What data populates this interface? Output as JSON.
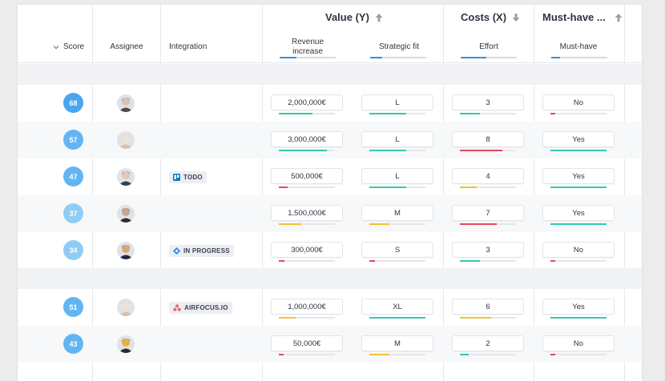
{
  "colors": {
    "primary": "#2f8fe3",
    "green": "#33c9b2",
    "yellow": "#f1c232",
    "red": "#e8455f",
    "badge_light": "#8fcdf5",
    "badge_dark": "#4aa5ef"
  },
  "header": {
    "groups": {
      "value": "Value (Y)",
      "costs": "Costs (X)",
      "musthave": "Must-have ..."
    },
    "columns": {
      "score": "Score",
      "assignee": "Assignee",
      "integration": "Integration",
      "revenue": "Revenue increase",
      "strategic": "Strategic fit",
      "effort": "Effort",
      "musthave": "Must-have"
    }
  },
  "rows": [
    {
      "score": "68",
      "tag": "",
      "tag_icon": "",
      "revenue": "2,000,000€",
      "rev_pct": 0.6,
      "rev_color": "green",
      "strategic": "L",
      "sf_pct": 0.65,
      "sf_color": "green",
      "effort": "3",
      "eff_pct": 0.35,
      "eff_color": "green",
      "musthave": "No",
      "mh_pct": 0.08,
      "mh_color": "red"
    },
    {
      "score": "57",
      "tag": "",
      "tag_icon": "",
      "revenue": "3,000,000€",
      "rev_pct": 0.85,
      "rev_color": "green",
      "strategic": "L",
      "sf_pct": 0.65,
      "sf_color": "green",
      "effort": "8",
      "eff_pct": 0.75,
      "eff_color": "red",
      "musthave": "Yes",
      "mh_pct": 1.0,
      "mh_color": "green"
    },
    {
      "score": "47",
      "tag": "TODO",
      "tag_icon": "trello-icon",
      "revenue": "500,000€",
      "rev_pct": 0.15,
      "rev_color": "red",
      "strategic": "L",
      "sf_pct": 0.65,
      "sf_color": "green",
      "effort": "4",
      "eff_pct": 0.3,
      "eff_color": "yellow",
      "musthave": "Yes",
      "mh_pct": 1.0,
      "mh_color": "green"
    },
    {
      "score": "37",
      "tag": "",
      "tag_icon": "",
      "revenue": "1,500,000€",
      "rev_pct": 0.4,
      "rev_color": "yellow",
      "strategic": "M",
      "sf_pct": 0.35,
      "sf_color": "yellow",
      "effort": "7",
      "eff_pct": 0.65,
      "eff_color": "red",
      "musthave": "Yes",
      "mh_pct": 1.0,
      "mh_color": "green"
    },
    {
      "score": "34",
      "tag": "IN PROGRESS",
      "tag_icon": "jira-icon",
      "revenue": "300,000€",
      "rev_pct": 0.1,
      "rev_color": "red",
      "strategic": "S",
      "sf_pct": 0.1,
      "sf_color": "red",
      "effort": "3",
      "eff_pct": 0.35,
      "eff_color": "green",
      "musthave": "No",
      "mh_pct": 0.08,
      "mh_color": "red"
    },
    {
      "score": "51",
      "tag": "AIRFOCUS.IO",
      "tag_icon": "asana-icon",
      "revenue": "1,000,000€",
      "rev_pct": 0.3,
      "rev_color": "yellow",
      "strategic": "XL",
      "sf_pct": 1.0,
      "sf_color": "green",
      "effort": "6",
      "eff_pct": 0.55,
      "eff_color": "yellow",
      "musthave": "Yes",
      "mh_pct": 1.0,
      "mh_color": "green"
    },
    {
      "score": "43",
      "tag": "",
      "tag_icon": "",
      "revenue": "50,000€",
      "rev_pct": 0.08,
      "rev_color": "red",
      "strategic": "M",
      "sf_pct": 0.35,
      "sf_color": "yellow",
      "effort": "2",
      "eff_pct": 0.15,
      "eff_color": "green",
      "musthave": "No",
      "mh_pct": 0.08,
      "mh_color": "red"
    }
  ]
}
